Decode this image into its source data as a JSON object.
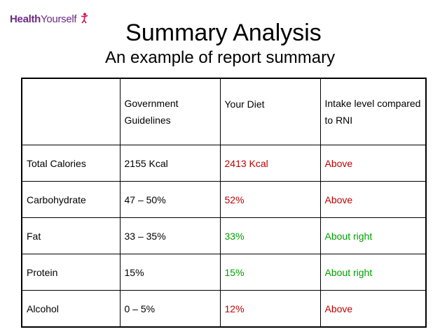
{
  "logo": {
    "part1": "Health",
    "part2": "Yourself"
  },
  "title": "Summary Analysis",
  "subtitle": "An example of report summary",
  "table": {
    "headers": [
      "",
      "Government Guidelines",
      "Your Diet",
      "Intake level compared to RNI"
    ],
    "rows": [
      {
        "nutrient": "Total Calories",
        "guideline": "2155 Kcal",
        "diet": "2413 Kcal",
        "diet_color": "#c00000",
        "level": "Above",
        "level_color": "#c00000"
      },
      {
        "nutrient": "Carbohydrate",
        "guideline": "47 – 50%",
        "diet": "52%",
        "diet_color": "#c00000",
        "level": "Above",
        "level_color": "#c00000"
      },
      {
        "nutrient": "Fat",
        "guideline": "33 – 35%",
        "diet": "33%",
        "diet_color": "#00a000",
        "level": "About right",
        "level_color": "#00a000"
      },
      {
        "nutrient": "Protein",
        "guideline": "15%",
        "diet": "15%",
        "diet_color": "#00a000",
        "level": "About right",
        "level_color": "#00a000"
      },
      {
        "nutrient": "Alcohol",
        "guideline": "0 – 5%",
        "diet": "12%",
        "diet_color": "#c00000",
        "level": "Above",
        "level_color": "#c00000"
      }
    ]
  },
  "colors": {
    "logo": "#6b2a82",
    "above": "#c00000",
    "about_right": "#00a000"
  },
  "icons": {
    "logo": "person-figure-icon"
  }
}
